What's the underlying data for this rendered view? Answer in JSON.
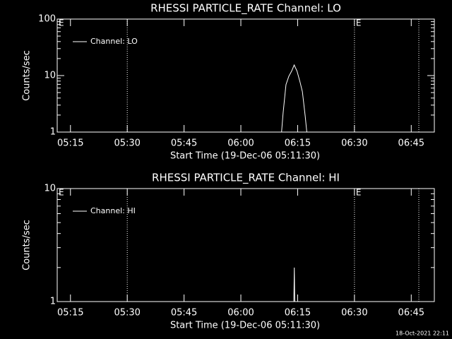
{
  "chart_data": [
    {
      "type": "line",
      "title": "RHESSI PARTICLE_RATE Channel: LO",
      "xlabel": "Start Time (19-Dec-06 05:11:30)",
      "ylabel": "Counts/sec",
      "log_y": true,
      "ylim": [
        1,
        100
      ],
      "yticks": [
        1,
        10,
        100
      ],
      "xlim": [
        "05:11:30",
        "06:51:06"
      ],
      "xticks": [
        "05:15",
        "05:30",
        "05:45",
        "06:00",
        "06:15",
        "06:30",
        "06:45"
      ],
      "vlines": [
        "05:30",
        "06:30",
        "06:47"
      ],
      "annotations": [
        {
          "x": "05:11:30",
          "text": "E"
        },
        {
          "x": "06:30",
          "text": "E"
        }
      ],
      "legend": "upper left",
      "x": [
        "06:10:45",
        "06:11:10",
        "06:11:55",
        "06:12:40",
        "06:13:25",
        "06:14:05",
        "06:14:50",
        "06:15:35",
        "06:16:15",
        "06:17:00",
        "06:17:25"
      ],
      "series": [
        {
          "name": "Channel: LO",
          "color": "#ffffff",
          "values": [
            1,
            2.2,
            6.9,
            9.7,
            12,
            15.4,
            12,
            7.9,
            5.2,
            1.9,
            1
          ]
        }
      ]
    },
    {
      "type": "line",
      "title": "RHESSI PARTICLE_RATE Channel: HI",
      "xlabel": "Start Time (19-Dec-06 05:11:30)",
      "ylabel": "Counts/sec",
      "log_y": true,
      "ylim": [
        1,
        10
      ],
      "yticks": [
        1,
        10
      ],
      "xlim": [
        "05:11:30",
        "06:51:06"
      ],
      "xticks": [
        "05:15",
        "05:30",
        "05:45",
        "06:00",
        "06:15",
        "06:30",
        "06:45"
      ],
      "vlines": [
        "05:30",
        "06:30",
        "06:47"
      ],
      "annotations": [
        {
          "x": "05:11:30",
          "text": "E"
        },
        {
          "x": "06:30",
          "text": "E"
        }
      ],
      "legend": "upper left",
      "x": [
        "06:14:00",
        "06:14:07",
        "06:14:14"
      ],
      "series": [
        {
          "name": "Channel: HI",
          "color": "#ffffff",
          "values": [
            1,
            2,
            1
          ]
        }
      ]
    }
  ],
  "footer": "18-Oct-2021 22:11"
}
